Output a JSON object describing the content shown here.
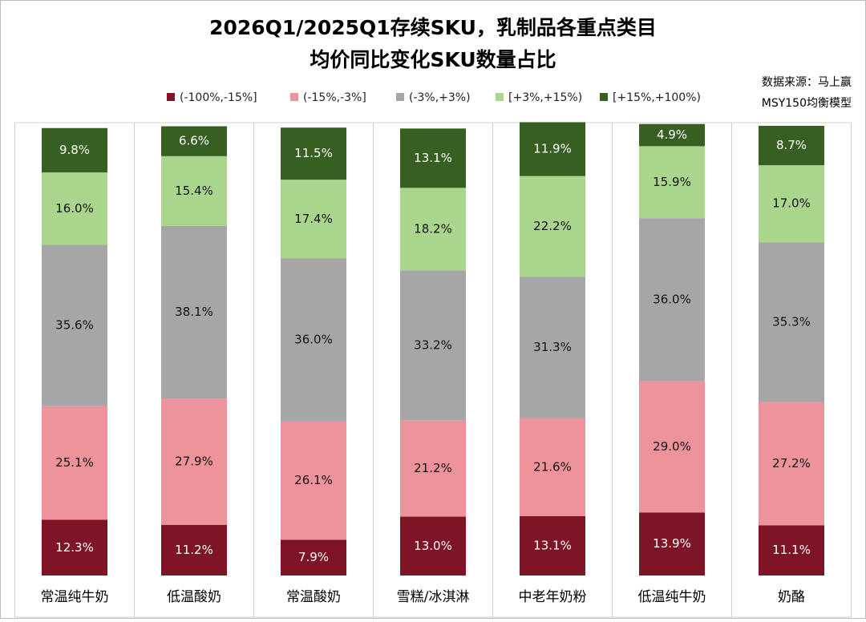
{
  "chart_data": {
    "type": "stacked_bar",
    "title": [
      "2026Q1/2025Q1存续SKU，乳制品各重点类目",
      "均价同比变化SKU数量占比"
    ],
    "annotations": [
      "数据来源：马上赢",
      "MSY150均衡模型"
    ],
    "categories": [
      "常温纯牛奶",
      "低温酸奶",
      "常温酸奶",
      "雪糕/冰淇淋",
      "中老年奶粉",
      "低温纯牛奶",
      "奶酪"
    ],
    "ylim": [
      0,
      100
    ],
    "legend": "top",
    "series": [
      {
        "name": "(-100%,-15%]",
        "color": "#7e1426",
        "values": [
          12.3,
          11.2,
          7.9,
          13.0,
          13.1,
          13.9,
          11.1
        ],
        "value_labels": [
          "12.3%",
          "11.2%",
          "7.9%",
          "13.0%",
          "13.1%",
          "13.9%",
          "11.1%"
        ]
      },
      {
        "name": "(-15%,-3%]",
        "color": "#ee939c",
        "values": [
          25.1,
          27.9,
          26.1,
          21.2,
          21.6,
          29.0,
          27.2
        ],
        "value_labels": [
          "25.1%",
          "27.9%",
          "26.1%",
          "21.2%",
          "21.6%",
          "29.0%",
          "27.2%"
        ]
      },
      {
        "name": "(-3%,+3%)",
        "color": "#a6a6a6",
        "values": [
          35.6,
          38.1,
          36.0,
          33.2,
          31.3,
          36.0,
          35.3
        ],
        "value_labels": [
          "35.6%",
          "38.1%",
          "36.0%",
          "33.2%",
          "31.3%",
          "36.0%",
          "35.3%"
        ]
      },
      {
        "name": "[+3%,+15%)",
        "color": "#a9d68c",
        "values": [
          16.0,
          15.4,
          17.4,
          18.2,
          22.2,
          15.9,
          17.0
        ],
        "value_labels": [
          "16.0%",
          "15.4%",
          "17.4%",
          "18.2%",
          "22.2%",
          "15.9%",
          "17.0%"
        ]
      },
      {
        "name": "[+15%,+100%)",
        "color": "#385f22",
        "values": [
          9.8,
          6.6,
          11.5,
          13.1,
          11.9,
          4.9,
          8.7
        ],
        "value_labels": [
          "9.8%",
          "6.6%",
          "11.5%",
          "13.1%",
          "11.9%",
          "4.9%",
          "8.7%"
        ]
      }
    ]
  }
}
